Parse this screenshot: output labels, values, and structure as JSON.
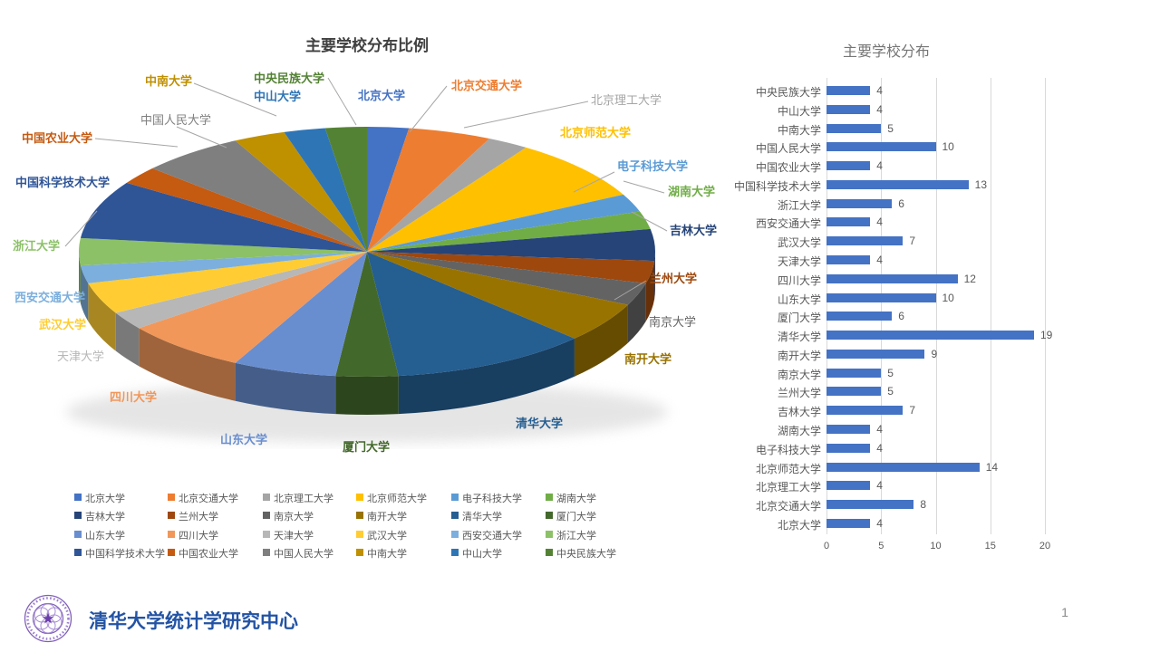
{
  "slide": {
    "page_number": "1"
  },
  "footer": {
    "text": "清华大学统计学研究中心",
    "text_color": "#2353A4",
    "logo": "tsinghua-university-seal",
    "logo_color": "#7B55B3"
  },
  "pie_chart": {
    "title": "主要学校分布比例"
  },
  "bar_chart": {
    "title": "主要学校分布"
  },
  "chart_data": [
    {
      "type": "pie",
      "style": "3d",
      "title": "主要学校分布比例",
      "legend_position": "bottom",
      "labels": [
        "北京大学",
        "北京交通大学",
        "北京理工大学",
        "北京师范大学",
        "电子科技大学",
        "湖南大学",
        "吉林大学",
        "兰州大学",
        "南京大学",
        "南开大学",
        "清华大学",
        "厦门大学",
        "山东大学",
        "四川大学",
        "天津大学",
        "武汉大学",
        "西安交通大学",
        "浙江大学",
        "中国科学技术大学",
        "中国农业大学",
        "中国人民大学",
        "中南大学",
        "中山大学",
        "中央民族大学"
      ],
      "values": [
        4,
        8,
        4,
        14,
        4,
        4,
        7,
        5,
        5,
        9,
        19,
        6,
        10,
        12,
        4,
        7,
        4,
        6,
        13,
        4,
        10,
        5,
        4,
        4
      ],
      "colors": [
        "#4472C4",
        "#ED7D31",
        "#A5A5A5",
        "#FFC000",
        "#5B9BD5",
        "#70AD47",
        "#264478",
        "#9E480E",
        "#636363",
        "#997300",
        "#255E91",
        "#43682B",
        "#698ED0",
        "#F1975A",
        "#B7B7B7",
        "#FFCD33",
        "#7CAFDD",
        "#8CC168",
        "#2F5597",
        "#C55A11",
        "#7F7F7F",
        "#BF9000",
        "#2E75B6",
        "#548235"
      ]
    },
    {
      "type": "bar",
      "orientation": "horizontal",
      "title": "主要学校分布",
      "categories": [
        "中央民族大学",
        "中山大学",
        "中南大学",
        "中国人民大学",
        "中国农业大学",
        "中国科学技术大学",
        "浙江大学",
        "西安交通大学",
        "武汉大学",
        "天津大学",
        "四川大学",
        "山东大学",
        "厦门大学",
        "清华大学",
        "南开大学",
        "南京大学",
        "兰州大学",
        "吉林大学",
        "湖南大学",
        "电子科技大学",
        "北京师范大学",
        "北京理工大学",
        "北京交通大学",
        "北京大学"
      ],
      "values": [
        4,
        4,
        5,
        10,
        4,
        13,
        6,
        4,
        7,
        4,
        12,
        10,
        6,
        19,
        9,
        5,
        5,
        7,
        4,
        4,
        14,
        4,
        8,
        4
      ],
      "x_ticks": [
        0,
        5,
        10,
        15,
        20
      ],
      "xlim": [
        0,
        20
      ],
      "bar_color": "#4472C4",
      "grid": true,
      "label_color": "#595959"
    }
  ]
}
